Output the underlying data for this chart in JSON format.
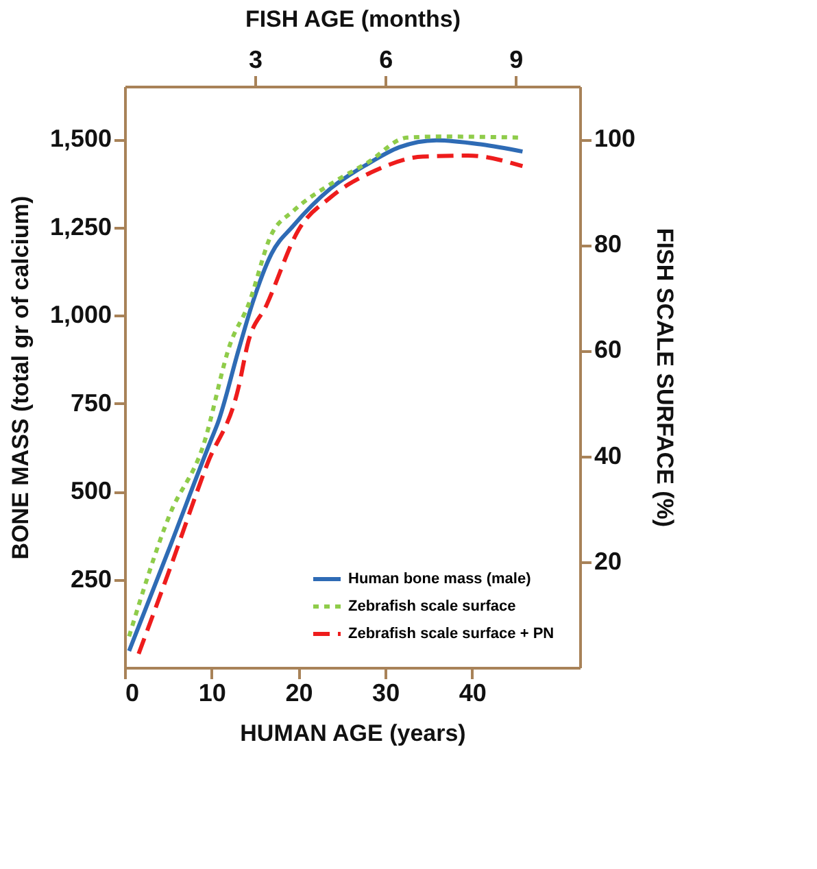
{
  "chart_data": {
    "type": "line",
    "xlabel": "HUMAN AGE (years)",
    "ylabel": "BONE MASS (total gr of calcium)",
    "y2label": "FISH SCALE SURFACE (%)",
    "x2label": "FISH AGE (months)",
    "xlim": [
      0,
      52.4
    ],
    "xticks": [
      0,
      10,
      20,
      30,
      40
    ],
    "ylim": [
      0,
      1650
    ],
    "yticks": [
      250,
      500,
      750,
      {
        "value": 1000,
        "label": "1,000"
      },
      {
        "value": 1250,
        "label": "1,250"
      },
      {
        "value": 1500,
        "label": "1,500"
      }
    ],
    "x2lim": [
      0,
      10.48
    ],
    "x2ticks": [
      3,
      6,
      9
    ],
    "y2lim": [
      0,
      110
    ],
    "y2ticks": [
      20,
      40,
      60,
      80,
      100
    ],
    "grid": false,
    "legend": "bottom right",
    "marker": "none",
    "series": [
      {
        "name": "Human bone mass (male)",
        "color": "#2e6bb5",
        "line_style": "solid",
        "x": [
          0.5,
          5,
          10,
          10.7,
          13.1,
          14.7,
          16.9,
          19.4,
          23.7,
          28,
          31.6,
          35.9,
          41.1,
          45.8
        ],
        "values": [
          47,
          330,
          650,
          693,
          901,
          1034,
          1175,
          1254,
          1360,
          1430,
          1477,
          1497,
          1485,
          1465
        ]
      },
      {
        "name": "Zebrafish scale surface",
        "color": "#8fcc4a",
        "line_style": "dotted",
        "axis": "y2",
        "x": [
          0.5,
          5.2,
          9.0,
          12.2,
          14.2,
          16.9,
          19.4,
          23.7,
          28,
          32.5,
          36.6,
          45.8
        ],
        "values": [
          5.9,
          29,
          41.8,
          61.5,
          68.5,
          82,
          86.4,
          91.5,
          95.6,
          100.3,
          100.5,
          100.3
        ]
      },
      {
        "name": "Zebrafish scale surface + PN",
        "color": "#ee1c1c",
        "line_style": "dashed",
        "axis": "y2",
        "x": [
          1.6,
          5.2,
          9.5,
          13.1,
          14.2,
          16.3,
          20,
          23.7,
          28.9,
          34.3,
          39.5,
          45.8
        ],
        "values": [
          2.6,
          18.7,
          38.5,
          53,
          61.5,
          68.5,
          82.8,
          89,
          94.1,
          96.7,
          96.9,
          94.9
        ]
      }
    ]
  }
}
